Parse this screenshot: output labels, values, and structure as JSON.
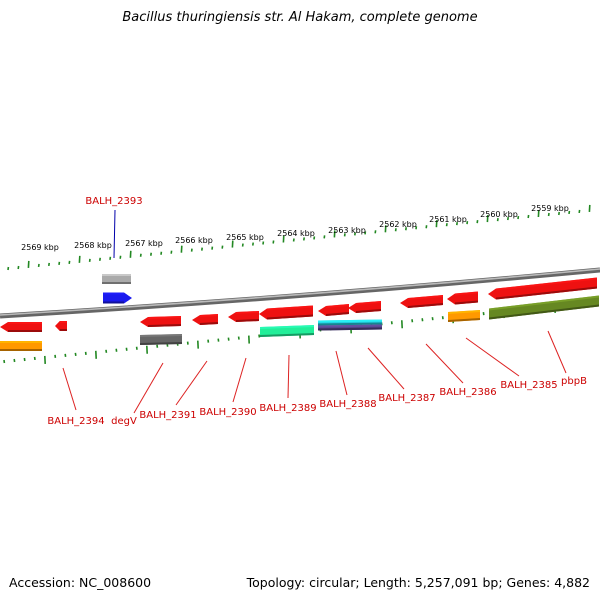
{
  "title": "Bacillus thuringiensis str. Al Hakam, complete genome",
  "footer": {
    "accession": "Accession: NC_008600",
    "topology": "Topology: circular; Length: 5,257,091 bp; Genes: 4,882"
  },
  "colors": {
    "backbone": "#888888",
    "tick": "#228822",
    "label_highlight": "#0000aa",
    "label_default": "#cc0000",
    "leader_default": "#dd2222"
  },
  "kbp_labels": [
    "2569 kbp",
    "2568 kbp",
    "2567 kbp",
    "2566 kbp",
    "2565 kbp",
    "2564 kbp",
    "2563 kbp",
    "2562 kbp",
    "2561 kbp",
    "2560 kbp",
    "2559 kbp"
  ],
  "gene_labels": [
    {
      "text": "BALH_2393",
      "highlight": true
    },
    {
      "text": "BALH_2394",
      "highlight": false
    },
    {
      "text": "degV",
      "highlight": false
    },
    {
      "text": "BALH_2391",
      "highlight": false
    },
    {
      "text": "BALH_2390",
      "highlight": false
    },
    {
      "text": "BALH_2389",
      "highlight": false
    },
    {
      "text": "BALH_2388",
      "highlight": false
    },
    {
      "text": "BALH_2387",
      "highlight": false
    },
    {
      "text": "BALH_2386",
      "highlight": false
    },
    {
      "text": "BALH_2385",
      "highlight": false
    },
    {
      "text": "pbpB",
      "highlight": false
    }
  ],
  "features": [
    {
      "name": "balh-2393-gene",
      "color": "#1a1aee",
      "direction": "right"
    },
    {
      "name": "balh-2393-cds-gray",
      "color": "#aaaaaa",
      "direction": "none"
    },
    {
      "name": "balh-2394-gene",
      "color": "#ee1111",
      "direction": "left"
    },
    {
      "name": "balh-2394-cds-orange",
      "color": "#ff9900",
      "direction": "none"
    },
    {
      "name": "small-gene",
      "color": "#ee1111",
      "direction": "left"
    },
    {
      "name": "degv-gene",
      "color": "#ee1111",
      "direction": "left"
    },
    {
      "name": "degv-cds-darkgray",
      "color": "#666666",
      "direction": "none"
    },
    {
      "name": "balh-2391-gene",
      "color": "#ee1111",
      "direction": "left"
    },
    {
      "name": "balh-2390-gene",
      "color": "#ee1111",
      "direction": "left"
    },
    {
      "name": "balh-2389-gene",
      "color": "#ee1111",
      "direction": "left"
    },
    {
      "name": "balh-2389-cds-teal",
      "color": "#22ee99",
      "direction": "none"
    },
    {
      "name": "balh-2388-gene",
      "color": "#ee1111",
      "direction": "left"
    },
    {
      "name": "balh-2388-cds-cyan",
      "color": "#22ccdd",
      "direction": "none"
    },
    {
      "name": "balh-2388-cds-purple",
      "color": "#554488",
      "direction": "none"
    },
    {
      "name": "balh-2387-gene",
      "color": "#ee1111",
      "direction": "left"
    },
    {
      "name": "balh-2386-gene",
      "color": "#ee1111",
      "direction": "left"
    },
    {
      "name": "balh-2386-cds-orange",
      "color": "#ff9900",
      "direction": "none"
    },
    {
      "name": "balh-2385-gene",
      "color": "#ee1111",
      "direction": "left"
    },
    {
      "name": "pbpb-gene",
      "color": "#ee1111",
      "direction": "left"
    },
    {
      "name": "pbpb-cds-olive",
      "color": "#668822",
      "direction": "none"
    }
  ]
}
